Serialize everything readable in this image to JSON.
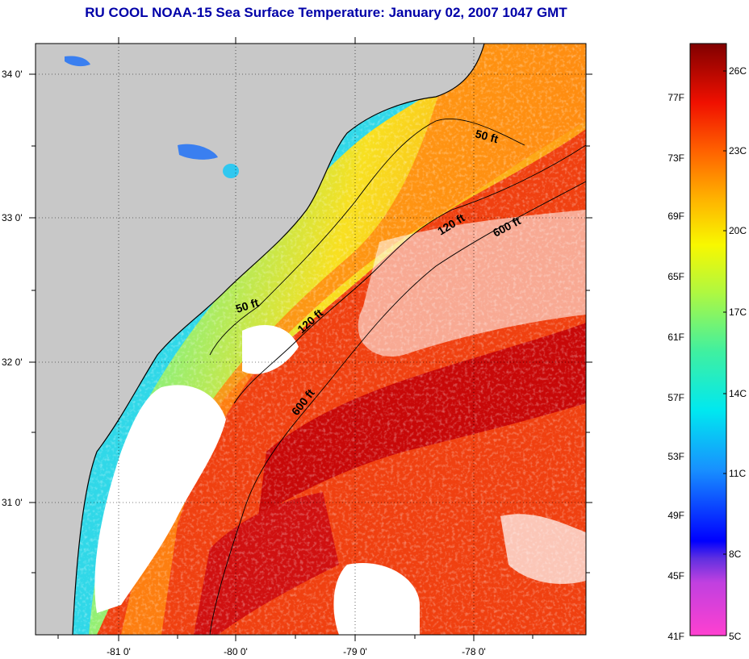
{
  "title": "RU COOL  NOAA-15  Sea Surface Temperature:  January 02, 2007 1047 GMT",
  "map": {
    "lat_ticks": [
      {
        "value": 34,
        "label": "34 0'"
      },
      {
        "value": 33,
        "label": "33 0'"
      },
      {
        "value": 32,
        "label": "32 0'"
      },
      {
        "value": 31,
        "label": "31 0'"
      }
    ],
    "lon_ticks": [
      {
        "value": -81,
        "label": "-81 0'"
      },
      {
        "value": -80,
        "label": "-80 0'"
      },
      {
        "value": -79,
        "label": "-79 0'"
      },
      {
        "value": -78,
        "label": "-78 0'"
      }
    ],
    "contour_labels": [
      "50 ft",
      "120 ft",
      "600 ft",
      "50 ft",
      "120 ft",
      "600 ft"
    ],
    "colors": {
      "land": "#c8c8c8",
      "cloud": "#ffffff",
      "coast": "#000000"
    }
  },
  "colorbar": {
    "fahrenheit": [
      "77F",
      "73F",
      "69F",
      "65F",
      "61F",
      "57F",
      "53F",
      "49F",
      "45F",
      "41F"
    ],
    "celsius": [
      "26C",
      "23C",
      "20C",
      "17C",
      "14C",
      "11C",
      "8C",
      "5C"
    ],
    "range_c": [
      5,
      27
    ]
  }
}
